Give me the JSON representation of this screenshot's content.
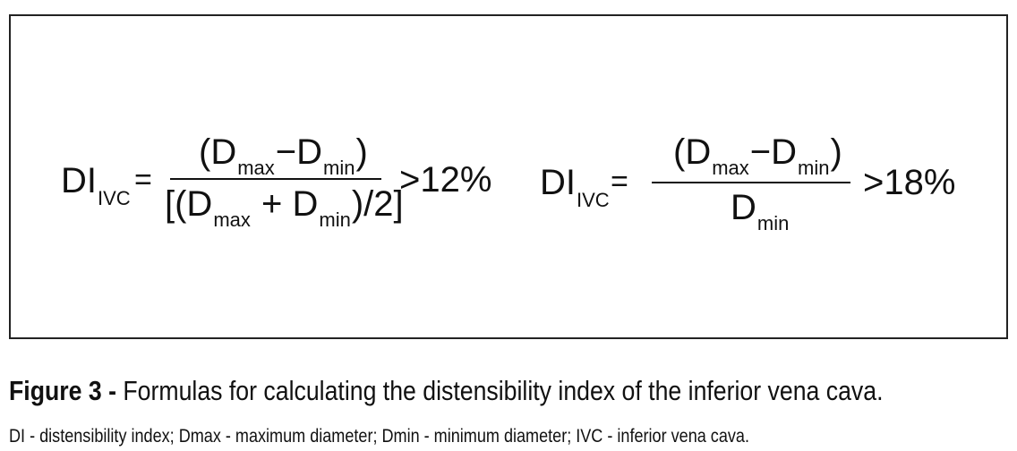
{
  "formula_1": {
    "lhs_main": "DI",
    "lhs_sub": "IVC",
    "equals": "=",
    "num_open": "(D",
    "num_sub_max": "max",
    "num_minus": "−D",
    "num_sub_min": "min",
    "num_close": ")",
    "den_open": "[(D",
    "den_sub_max": "max",
    "den_plus": " + D",
    "den_sub_min": "min",
    "den_close": ")/2]",
    "comparison": ">12%"
  },
  "formula_2": {
    "lhs_main": "DI",
    "lhs_sub": "IVC",
    "equals": "=",
    "num_open": "(D",
    "num_sub_max": "max",
    "num_minus": "−D",
    "num_sub_min": "min",
    "num_close": ")",
    "den_main": "D",
    "den_sub_min": "min",
    "comparison": ">18%"
  },
  "caption": {
    "label": "Figure 3 -",
    "title": " Formulas for calculating the distensibility index of the inferior vena cava.",
    "note": "DI - distensibility index; Dmax - maximum diameter; Dmin - minimum diameter; IVC - inferior vena cava."
  }
}
